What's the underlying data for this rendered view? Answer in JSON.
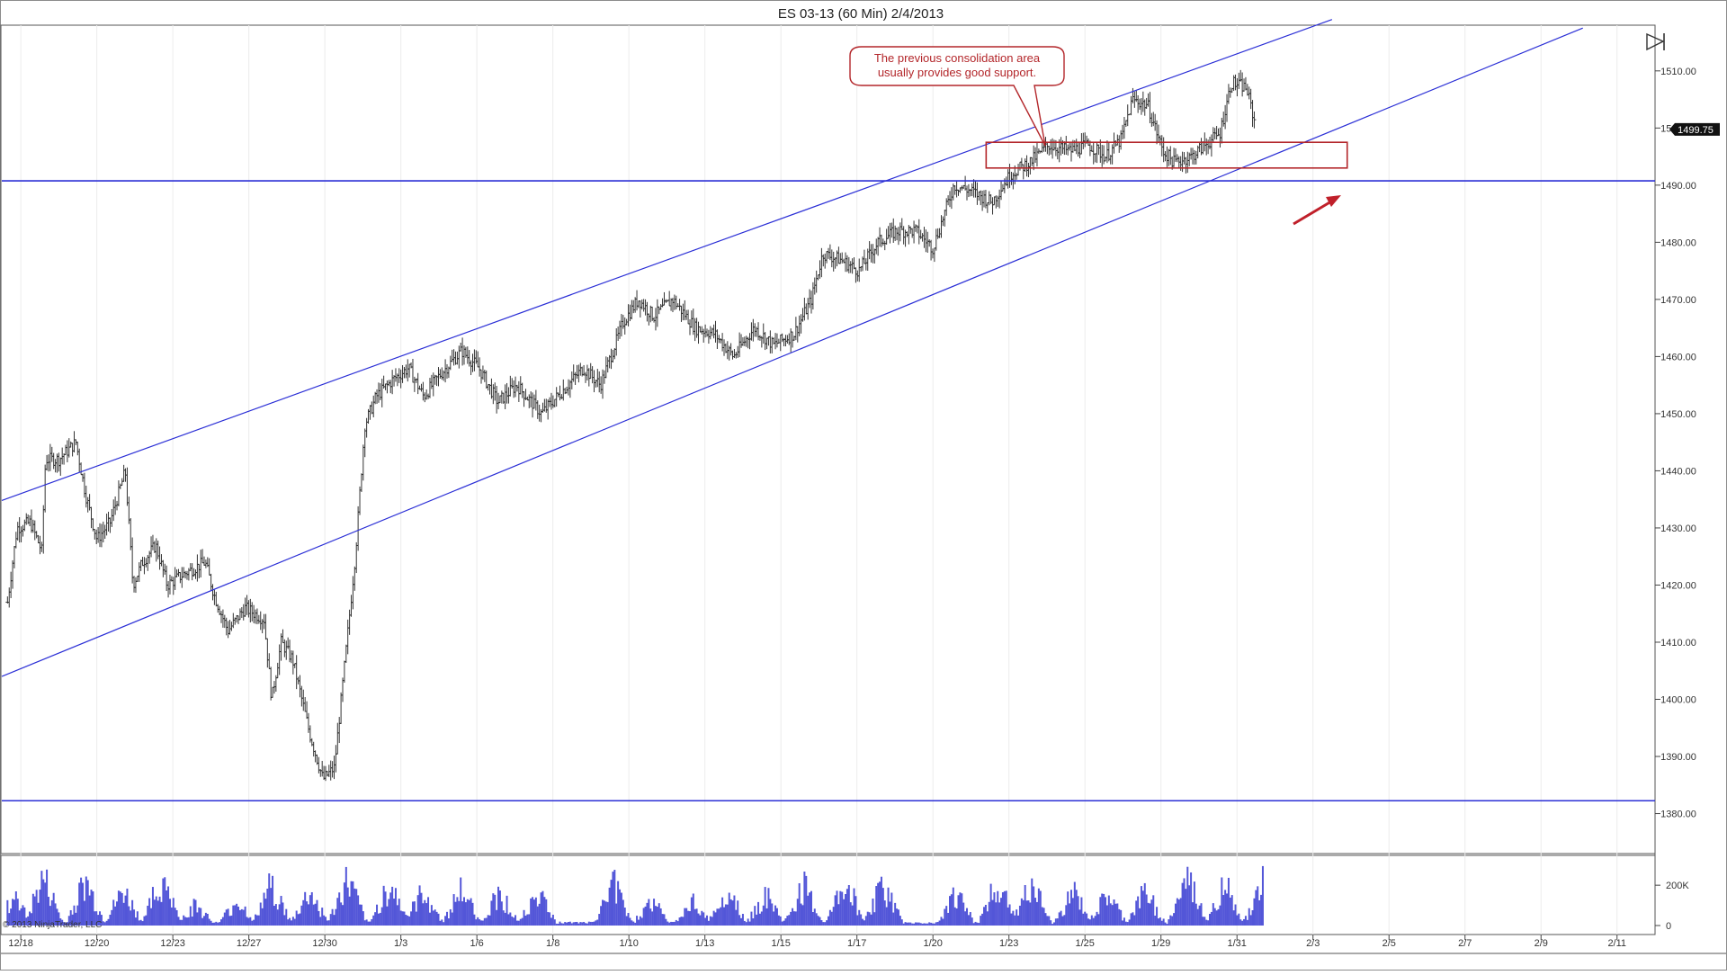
{
  "chart_data": [
    {
      "type": "ohlc",
      "title": "ES 03-13 (60 Min)  2/4/2013",
      "ylim": [
        1373,
        1518
      ],
      "y_ticks": [
        "1510.00",
        "1500.00",
        "1490.00",
        "1480.00",
        "1470.00",
        "1460.00",
        "1450.00",
        "1440.00",
        "1430.00",
        "1420.00",
        "1410.00",
        "1400.00",
        "1390.00",
        "1380.00"
      ],
      "y_tick_values": [
        1510,
        1500,
        1490,
        1480,
        1470,
        1460,
        1450,
        1440,
        1430,
        1420,
        1410,
        1400,
        1390,
        1380
      ],
      "last_price_label": "1499.75",
      "last_price": 1499.75,
      "x_tick_labels": [
        "12/18",
        "12/20",
        "12/23",
        "12/27",
        "12/30",
        "1/3",
        "1/6",
        "1/8",
        "1/10",
        "1/13",
        "1/15",
        "1/17",
        "1/20",
        "1/23",
        "1/25",
        "1/29",
        "1/31",
        "2/3",
        "2/5",
        "2/7",
        "2/9",
        "2/11"
      ],
      "x_tick_positions": [
        0.5,
        2.5,
        4.5,
        6.5,
        8.5,
        10.5,
        12.5,
        14.5,
        16.5,
        18.5,
        20.5,
        22.5,
        24.5,
        26.5,
        28.5,
        30.5,
        32.5,
        34.5,
        36.5,
        38.5,
        40.5,
        42.5
      ],
      "x_range": [
        0,
        43.5
      ],
      "price_path": [
        [
          0.15,
          1417
        ],
        [
          0.4,
          1430
        ],
        [
          0.75,
          1431
        ],
        [
          1.05,
          1426
        ],
        [
          1.15,
          1442
        ],
        [
          1.5,
          1442
        ],
        [
          1.95,
          1445
        ],
        [
          2.2,
          1436
        ],
        [
          2.5,
          1428
        ],
        [
          2.85,
          1431
        ],
        [
          3.25,
          1440
        ],
        [
          3.45,
          1420
        ],
        [
          3.7,
          1424
        ],
        [
          4.05,
          1427
        ],
        [
          4.35,
          1420
        ],
        [
          4.8,
          1422
        ],
        [
          5.35,
          1424
        ],
        [
          5.6,
          1418
        ],
        [
          5.95,
          1412
        ],
        [
          6.4,
          1416
        ],
        [
          6.9,
          1414
        ],
        [
          7.1,
          1400
        ],
        [
          7.35,
          1410
        ],
        [
          7.65,
          1407
        ],
        [
          8.1,
          1394
        ],
        [
          8.45,
          1386
        ],
        [
          8.75,
          1388
        ],
        [
          9.05,
          1408
        ],
        [
          9.3,
          1425
        ],
        [
          9.55,
          1448
        ],
        [
          9.85,
          1453
        ],
        [
          10.3,
          1456
        ],
        [
          10.7,
          1458
        ],
        [
          11.1,
          1453
        ],
        [
          11.55,
          1457
        ],
        [
          12.1,
          1461
        ],
        [
          12.55,
          1458
        ],
        [
          13.05,
          1452
        ],
        [
          13.55,
          1455
        ],
        [
          14.2,
          1450
        ],
        [
          14.75,
          1454
        ],
        [
          15.3,
          1458
        ],
        [
          15.75,
          1455
        ],
        [
          16.35,
          1466
        ],
        [
          16.75,
          1470
        ],
        [
          17.15,
          1467
        ],
        [
          17.65,
          1470
        ],
        [
          18.25,
          1465
        ],
        [
          18.75,
          1464
        ],
        [
          19.25,
          1460
        ],
        [
          19.8,
          1465
        ],
        [
          20.3,
          1462
        ],
        [
          20.85,
          1464
        ],
        [
          21.3,
          1470
        ],
        [
          21.6,
          1478
        ],
        [
          22.05,
          1477
        ],
        [
          22.55,
          1475
        ],
        [
          23.05,
          1480
        ],
        [
          23.55,
          1482
        ],
        [
          24.05,
          1482
        ],
        [
          24.5,
          1479
        ],
        [
          25.05,
          1490
        ],
        [
          25.5,
          1489
        ],
        [
          26.05,
          1487
        ],
        [
          26.55,
          1492
        ],
        [
          27.05,
          1494
        ],
        [
          27.55,
          1497
        ],
        [
          28.1,
          1496
        ],
        [
          28.6,
          1497
        ],
        [
          29.05,
          1495
        ],
        [
          29.45,
          1498
        ],
        [
          29.75,
          1505
        ],
        [
          30.15,
          1504
        ],
        [
          30.55,
          1496
        ],
        [
          30.85,
          1494
        ],
        [
          31.3,
          1495
        ],
        [
          31.65,
          1497
        ],
        [
          32.05,
          1499
        ],
        [
          32.35,
          1508
        ],
        [
          32.75,
          1507
        ],
        [
          33.0,
          1500
        ]
      ],
      "annotations": {
        "callout_text": "The previous consolidation area\nusually provides good support.",
        "horizontal_lines": [
          1490.75,
          1382.25
        ],
        "consolidation_box": {
          "x0": 25.9,
          "x1": 35.4,
          "y0": 1493,
          "y1": 1497.5
        },
        "channel_upper": [
          [
            0,
            1434.8
          ],
          [
            35,
            1519
          ]
        ],
        "channel_lower": [
          [
            0,
            1404
          ],
          [
            41.6,
            1517.5
          ]
        ]
      },
      "copyright": "© 2013 NinjaTrader, LLC"
    },
    {
      "type": "bar",
      "title": "",
      "ylim": [
        0,
        330000
      ],
      "y_ticks": [
        "200K",
        "0"
      ],
      "y_tick_values": [
        200000,
        0
      ],
      "volume_peaks": [
        [
          0.3,
          200000
        ],
        [
          1.1,
          340000
        ],
        [
          2.2,
          320000
        ],
        [
          3.2,
          250000
        ],
        [
          4.2,
          330000
        ],
        [
          5.1,
          150000
        ],
        [
          6.2,
          180000
        ],
        [
          7.1,
          300000
        ],
        [
          8.1,
          240000
        ],
        [
          9.1,
          330000
        ],
        [
          10.2,
          300000
        ],
        [
          11.1,
          250000
        ],
        [
          12.1,
          260000
        ],
        [
          13.1,
          240000
        ],
        [
          14.1,
          260000
        ],
        [
          16.1,
          310000
        ],
        [
          17.1,
          180000
        ],
        [
          18.2,
          180000
        ],
        [
          19.1,
          280000
        ],
        [
          20.1,
          220000
        ],
        [
          21.1,
          280000
        ],
        [
          22.2,
          320000
        ],
        [
          23.2,
          300000
        ],
        [
          25.1,
          240000
        ],
        [
          26.2,
          310000
        ],
        [
          27.1,
          300000
        ],
        [
          28.2,
          240000
        ],
        [
          29.1,
          220000
        ],
        [
          30.1,
          250000
        ],
        [
          31.2,
          340000
        ],
        [
          32.2,
          300000
        ],
        [
          33.2,
          340000
        ]
      ]
    }
  ]
}
